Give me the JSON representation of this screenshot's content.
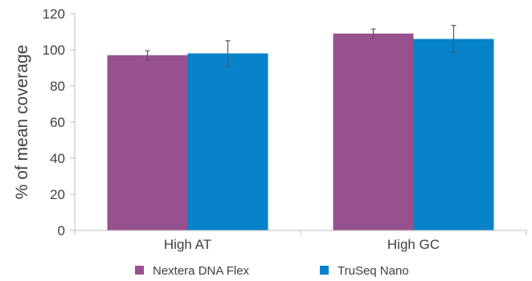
{
  "chart_data": {
    "type": "bar",
    "categories": [
      "High AT",
      "High GC"
    ],
    "series": [
      {
        "name": "Nextera DNA Flex",
        "color": "#98518f",
        "values": [
          97,
          109
        ],
        "error": [
          2.5,
          2.5
        ]
      },
      {
        "name": "TruSeq Nano",
        "color": "#0683c9",
        "values": [
          98,
          106
        ],
        "error": [
          7,
          7.5
        ]
      }
    ],
    "ylabel": "% of mean coverage",
    "xlabel": "",
    "ylim": [
      0,
      120
    ],
    "yticks": [
      0,
      20,
      40,
      60,
      80,
      100,
      120
    ],
    "grid": false,
    "legend_position": "bottom"
  }
}
